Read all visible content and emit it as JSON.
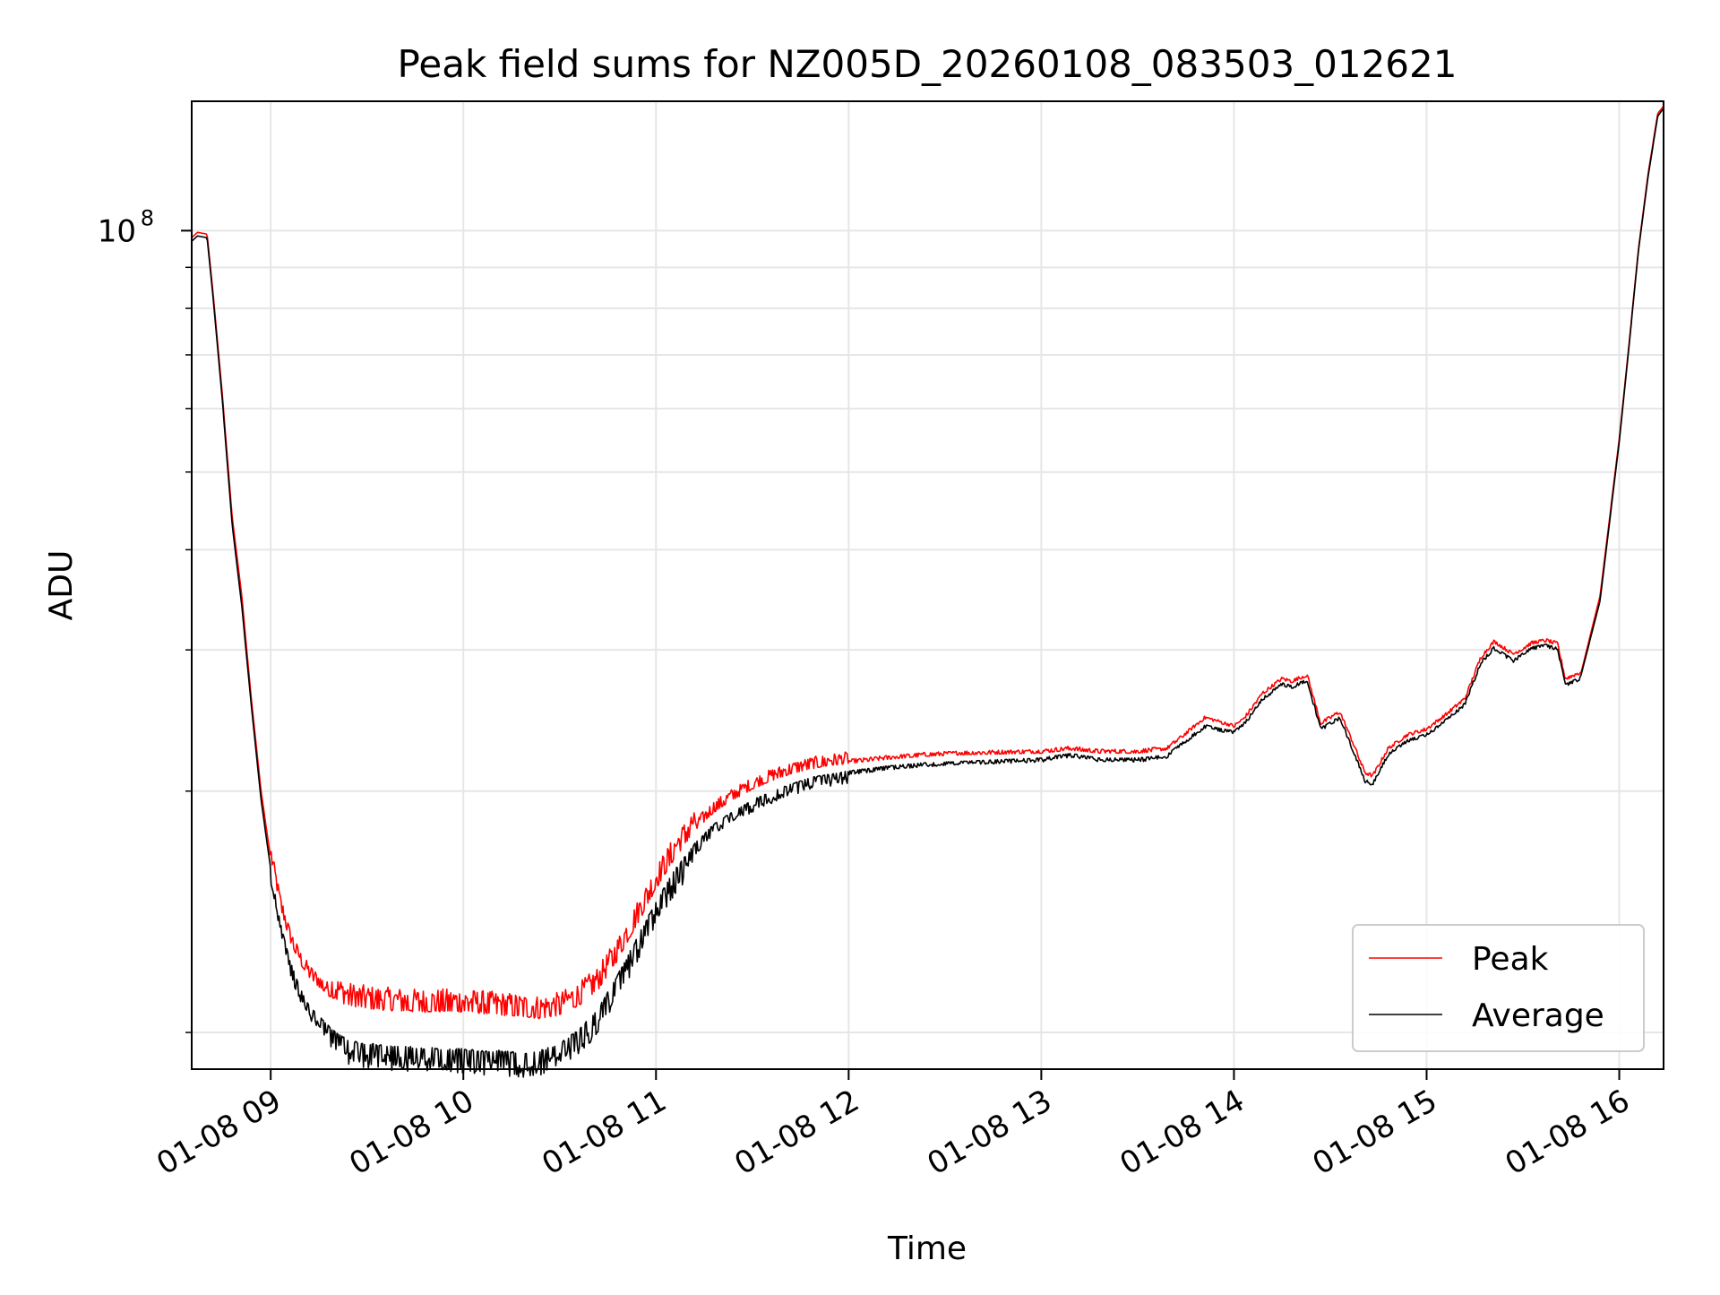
{
  "chart_data": {
    "type": "line",
    "title": "Peak field sums for NZ005D_20260108_083503_012621",
    "xlabel": "Time",
    "ylabel": "ADU",
    "yscale": "log",
    "xlim_hours": [
      8.59,
      16.23
    ],
    "ylim": [
      9000000,
      145000000
    ],
    "x_ticks": [
      {
        "value": 9,
        "label": "01-08 09"
      },
      {
        "value": 10,
        "label": "01-08 10"
      },
      {
        "value": 11,
        "label": "01-08 11"
      },
      {
        "value": 12,
        "label": "01-08 12"
      },
      {
        "value": 13,
        "label": "01-08 13"
      },
      {
        "value": 14,
        "label": "01-08 14"
      },
      {
        "value": 15,
        "label": "01-08 15"
      },
      {
        "value": 16,
        "label": "01-08 16"
      }
    ],
    "y_major_ticks": [
      {
        "value": 100000000,
        "base": "10",
        "exponent": "8"
      }
    ],
    "y_minor_ticks": [
      10000000,
      20000000,
      30000000,
      40000000,
      50000000,
      60000000,
      70000000,
      80000000,
      90000000
    ],
    "grid": true,
    "legend_position": "lower-right",
    "series": [
      {
        "name": "Peak",
        "color": "#ff0000",
        "x_hours": [
          8.59,
          8.62,
          8.67,
          8.7,
          8.75,
          8.8,
          8.85,
          8.9,
          8.95,
          9.0,
          9.05,
          9.1,
          9.15,
          9.2,
          9.3,
          9.4,
          9.5,
          9.6,
          9.75,
          9.9,
          10.0,
          10.1,
          10.2,
          10.3,
          10.4,
          10.5,
          10.6,
          10.7,
          10.8,
          10.9,
          11.0,
          11.1,
          11.2,
          11.3,
          11.4,
          11.5,
          11.6,
          11.7,
          11.8,
          11.9,
          12.0,
          12.2,
          12.4,
          12.6,
          12.8,
          13.0,
          13.15,
          13.3,
          13.5,
          13.65,
          13.75,
          13.85,
          13.95,
          14.0,
          14.05,
          14.15,
          14.25,
          14.3,
          14.38,
          14.45,
          14.55,
          14.62,
          14.68,
          14.72,
          14.8,
          14.9,
          15.0,
          15.1,
          15.2,
          15.28,
          15.35,
          15.45,
          15.55,
          15.62,
          15.68,
          15.72,
          15.8,
          15.9,
          16.0,
          16.05,
          16.1,
          16.15,
          16.2,
          16.23
        ],
        "values": [
          98000000,
          99500000,
          99000000,
          84000000,
          62000000,
          44000000,
          35000000,
          26000000,
          20000000,
          16500000,
          14300000,
          13000000,
          12200000,
          11700000,
          11100000,
          10800000,
          10700000,
          10650000,
          10600000,
          10600000,
          10600000,
          10550000,
          10500000,
          10450000,
          10400000,
          10500000,
          10800000,
          11300000,
          12300000,
          13600000,
          15100000,
          16500000,
          17800000,
          18800000,
          19500000,
          20100000,
          20600000,
          21000000,
          21300000,
          21500000,
          21650000,
          21900000,
          22100000,
          22200000,
          22250000,
          22300000,
          22500000,
          22300000,
          22300000,
          22500000,
          23500000,
          24600000,
          24200000,
          24000000,
          24500000,
          26400000,
          27500000,
          27300000,
          27800000,
          24200000,
          25000000,
          22800000,
          21000000,
          20800000,
          22500000,
          23400000,
          23800000,
          24800000,
          26000000,
          29200000,
          30600000,
          29500000,
          30500000,
          30700000,
          30400000,
          27500000,
          28000000,
          35000000,
          55000000,
          72000000,
          95000000,
          118000000,
          140000000,
          143000000
        ]
      },
      {
        "name": "Average",
        "color": "#000000",
        "x_hours": [
          8.59,
          8.62,
          8.67,
          8.7,
          8.75,
          8.8,
          8.85,
          8.9,
          8.95,
          9.0,
          9.05,
          9.1,
          9.15,
          9.2,
          9.3,
          9.4,
          9.5,
          9.6,
          9.75,
          9.9,
          10.0,
          10.1,
          10.2,
          10.3,
          10.4,
          10.5,
          10.6,
          10.7,
          10.8,
          10.9,
          11.0,
          11.1,
          11.2,
          11.3,
          11.4,
          11.5,
          11.6,
          11.7,
          11.8,
          11.9,
          12.0,
          12.2,
          12.4,
          12.6,
          12.8,
          13.0,
          13.15,
          13.3,
          13.5,
          13.65,
          13.75,
          13.85,
          13.95,
          14.0,
          14.05,
          14.15,
          14.25,
          14.3,
          14.38,
          14.45,
          14.55,
          14.62,
          14.68,
          14.72,
          14.8,
          14.9,
          15.0,
          15.1,
          15.2,
          15.28,
          15.35,
          15.45,
          15.55,
          15.62,
          15.68,
          15.72,
          15.8,
          15.9,
          16.0,
          16.05,
          16.1,
          16.15,
          16.2,
          16.23
        ],
        "values": [
          97000000,
          98500000,
          98000000,
          83000000,
          61000000,
          43000000,
          34000000,
          25500000,
          19500000,
          16000000,
          13700000,
          12300000,
          11400000,
          10800000,
          10200000,
          9800000,
          9700000,
          9650000,
          9600000,
          9550000,
          9550000,
          9500000,
          9500000,
          9450000,
          9500000,
          9700000,
          10100000,
          10700000,
          11800000,
          13100000,
          14600000,
          16000000,
          17200000,
          18200000,
          18900000,
          19500000,
          20000000,
          20400000,
          20800000,
          21000000,
          21200000,
          21500000,
          21700000,
          21800000,
          21900000,
          22000000,
          22300000,
          22000000,
          22000000,
          22200000,
          23200000,
          24200000,
          23900000,
          23800000,
          24300000,
          26200000,
          27300000,
          27100000,
          27600000,
          24000000,
          24800000,
          22500000,
          20700000,
          20500000,
          22300000,
          23200000,
          23600000,
          24600000,
          25800000,
          29000000,
          30300000,
          29200000,
          30300000,
          30500000,
          30200000,
          27200000,
          27800000,
          34500000,
          54500000,
          71500000,
          94500000,
          117000000,
          139000000,
          142000000
        ]
      }
    ]
  }
}
